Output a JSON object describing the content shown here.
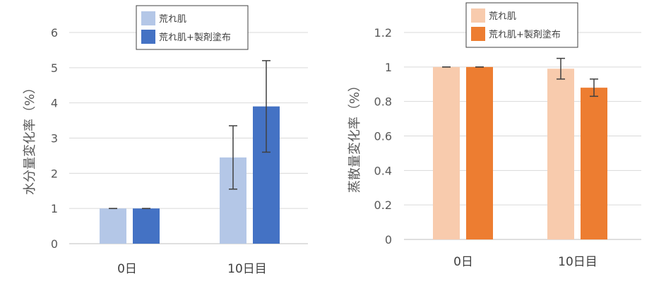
{
  "chart_data": [
    {
      "type": "bar",
      "categories": [
        "0日",
        "10日目"
      ],
      "ylabel": "水分量変化率（%）",
      "ylim": [
        0,
        6
      ],
      "yticks": [
        0,
        1,
        2,
        3,
        4,
        5,
        6
      ],
      "grid": true,
      "legend_position": "top",
      "series": [
        {
          "name": "荒れ肌",
          "color": "#b4c7e7",
          "values": [
            1.0,
            2.45
          ],
          "error": [
            0.0,
            0.9
          ]
        },
        {
          "name": "荒れ肌+製剤塗布",
          "color": "#4472c4",
          "values": [
            1.0,
            3.9
          ],
          "error": [
            0.0,
            1.3
          ]
        }
      ]
    },
    {
      "type": "bar",
      "categories": [
        "0日",
        "10日目"
      ],
      "ylabel": "蒸散量変化率（%）",
      "ylim": [
        0,
        1.2
      ],
      "yticks": [
        0,
        0.2,
        0.4,
        0.6,
        0.8,
        1,
        1.2
      ],
      "grid": true,
      "legend_position": "top",
      "series": [
        {
          "name": "荒れ肌",
          "color": "#f8cbad",
          "values": [
            1.0,
            0.99
          ],
          "error": [
            0.0,
            0.06
          ]
        },
        {
          "name": "荒れ肌+製剤塗布",
          "color": "#ed7d31",
          "values": [
            1.0,
            0.88
          ],
          "error": [
            0.0,
            0.05
          ]
        }
      ]
    }
  ]
}
